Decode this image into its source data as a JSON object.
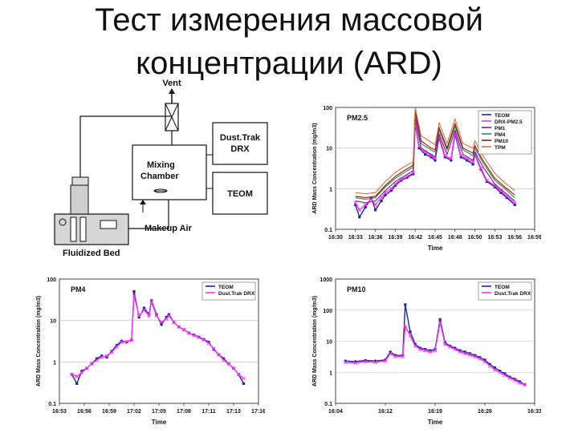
{
  "slide": {
    "title_line1": "Тест измерения массовой",
    "title_line2": "концентрации (ARD)"
  },
  "diagram": {
    "vent": "Vent",
    "dusttrak_line1": "Dust.Trak",
    "dusttrak_line2": "DRX",
    "mixing_line1": "Mixing",
    "mixing_line2": "Chamber",
    "teom": "TEOM",
    "makeup_air": "Makeup Air",
    "fluidized_bed": "Fluidized Bed"
  },
  "colors": {
    "teom": "#1a2a8c",
    "drx": "#ff33ff",
    "pm1": "#7a1fa2",
    "pm4": "#2e8b3a",
    "pm10": "#8b1a1a",
    "tpm": "#e0703a"
  },
  "chart_data": [
    {
      "id": "pm25",
      "type": "line",
      "title": "PM2.5",
      "xlabel": "Time",
      "ylabel": "ARD Mass Concentration (mg/m3)",
      "yscale": "log",
      "ylim": [
        0.1,
        100
      ],
      "yticks": [
        "0.1",
        "1",
        "10",
        "100"
      ],
      "xticks": [
        "16:30",
        "16:33",
        "16:36",
        "16:39",
        "16:42",
        "16:45",
        "16:48",
        "16:50",
        "16:53",
        "16:56",
        "16:59"
      ],
      "xlim": [
        0,
        10
      ],
      "legend_position": "top-right",
      "series": [
        {
          "name": "TEOM",
          "color": "#1a2a8c",
          "marker": "square",
          "x": [
            1.0,
            1.2,
            1.5,
            1.8,
            2.0,
            2.3,
            2.5,
            2.8,
            3.0,
            3.3,
            3.6,
            3.9,
            4.0,
            4.2,
            4.5,
            4.8,
            5.0,
            5.2,
            5.5,
            5.8,
            6.0,
            6.3,
            6.6,
            6.9,
            7.0,
            7.3,
            7.6,
            8.0,
            8.3,
            8.6,
            9.0
          ],
          "y": [
            0.4,
            0.2,
            0.35,
            0.6,
            0.3,
            0.5,
            0.7,
            0.9,
            1.2,
            1.6,
            1.9,
            2.3,
            40,
            10,
            7,
            6,
            5,
            18,
            6,
            5,
            22,
            6,
            5,
            4,
            7,
            3,
            1.5,
            1.1,
            0.8,
            0.6,
            0.4
          ]
        },
        {
          "name": "DRX-PM2.5",
          "color": "#ff33ff",
          "marker": "x",
          "x": [
            1.0,
            1.2,
            1.5,
            1.8,
            2.0,
            2.3,
            2.5,
            2.8,
            3.0,
            3.3,
            3.6,
            3.9,
            4.0,
            4.2,
            4.5,
            4.8,
            5.0,
            5.2,
            5.5,
            5.8,
            6.0,
            6.3,
            6.6,
            6.9,
            7.0,
            7.3,
            7.6,
            8.0,
            8.3,
            8.6,
            9.0
          ],
          "y": [
            0.45,
            0.3,
            0.4,
            0.55,
            0.4,
            0.6,
            0.8,
            1.0,
            1.3,
            1.7,
            2.0,
            2.5,
            45,
            11,
            8,
            6.5,
            5.5,
            20,
            6.5,
            5.5,
            25,
            6.5,
            5.5,
            4.5,
            7.5,
            3.2,
            1.6,
            1.2,
            0.9,
            0.65,
            0.45
          ]
        },
        {
          "name": "PM1",
          "color": "#7a1fa2",
          "marker": "none",
          "x": [
            1.0,
            1.5,
            2.0,
            2.5,
            3.0,
            3.5,
            3.9,
            4.0,
            4.3,
            4.8,
            5.0,
            5.2,
            5.6,
            6.0,
            6.4,
            6.9,
            7.0,
            7.4,
            8.0,
            8.5,
            9.0
          ],
          "y": [
            0.5,
            0.45,
            0.5,
            0.9,
            1.5,
            2.1,
            2.8,
            55,
            10,
            7,
            6,
            22,
            7,
            27,
            7,
            5,
            8,
            3.5,
            1.3,
            0.8,
            0.5
          ]
        },
        {
          "name": "PM4",
          "color": "#2e8b3a",
          "marker": "none",
          "x": [
            1.0,
            1.5,
            2.0,
            2.5,
            3.0,
            3.5,
            3.9,
            4.0,
            4.3,
            4.8,
            5.0,
            5.2,
            5.6,
            6.0,
            6.4,
            6.9,
            7.0,
            7.4,
            8.0,
            8.5,
            9.0
          ],
          "y": [
            0.6,
            0.55,
            0.6,
            1.1,
            1.8,
            2.6,
            3.4,
            70,
            13,
            9,
            8,
            28,
            9,
            34,
            9,
            6.5,
            10,
            4.4,
            1.6,
            1.0,
            0.6
          ]
        },
        {
          "name": "PM10",
          "color": "#8b1a1a",
          "marker": "none",
          "x": [
            1.0,
            1.5,
            2.0,
            2.5,
            3.0,
            3.5,
            3.9,
            4.0,
            4.3,
            4.8,
            5.0,
            5.2,
            5.6,
            6.0,
            6.4,
            6.9,
            7.0,
            7.4,
            8.0,
            8.5,
            9.0
          ],
          "y": [
            0.65,
            0.6,
            0.65,
            1.2,
            2.0,
            2.9,
            3.8,
            85,
            15,
            10,
            9,
            32,
            10,
            40,
            10,
            7.5,
            11.5,
            5,
            1.8,
            1.1,
            0.7
          ]
        },
        {
          "name": "TPM",
          "color": "#e0703a",
          "marker": "none",
          "x": [
            1.0,
            1.5,
            2.0,
            2.5,
            3.0,
            3.5,
            3.9,
            4.0,
            4.3,
            4.8,
            5.0,
            5.2,
            5.6,
            6.0,
            6.4,
            6.9,
            7.0,
            7.4,
            8.0,
            8.5,
            9.0
          ],
          "y": [
            0.8,
            0.75,
            0.8,
            1.5,
            2.5,
            3.6,
            4.6,
            100,
            20,
            14,
            12,
            42,
            13,
            52,
            13,
            10,
            15,
            6.5,
            2.4,
            1.4,
            0.9
          ]
        }
      ]
    },
    {
      "id": "pm4",
      "type": "line",
      "title": "PM4",
      "xlabel": "Time",
      "ylabel": "ARD Mass Concentration (mg/m3)",
      "yscale": "log",
      "ylim": [
        0.1,
        100
      ],
      "yticks": [
        "0.1",
        "1",
        "10",
        "100"
      ],
      "xticks": [
        "16:53",
        "16:56",
        "16:59",
        "17:02",
        "17:05",
        "17:08",
        "17:11",
        "17:13",
        "17:16"
      ],
      "xlim": [
        0,
        8
      ],
      "legend_position": "top-right",
      "series": [
        {
          "name": "TEOM",
          "color": "#1a2a8c",
          "marker": "square",
          "x": [
            0.5,
            0.7,
            0.9,
            1.1,
            1.3,
            1.5,
            1.7,
            1.9,
            2.1,
            2.3,
            2.5,
            2.7,
            2.9,
            3.0,
            3.2,
            3.4,
            3.6,
            3.7,
            3.9,
            4.1,
            4.3,
            4.4,
            4.6,
            4.8,
            5.0,
            5.2,
            5.4,
            5.6,
            5.8,
            6.0,
            6.2,
            6.4,
            6.6,
            6.8,
            7.0,
            7.2,
            7.4
          ],
          "y": [
            0.5,
            0.3,
            0.6,
            0.7,
            0.9,
            1.2,
            1.4,
            1.3,
            1.8,
            2.5,
            3.2,
            3.0,
            3.4,
            50,
            12,
            20,
            14,
            30,
            14,
            8,
            12,
            14,
            9,
            7,
            6,
            5,
            4.5,
            4,
            3.5,
            3,
            2,
            1.5,
            1.2,
            0.9,
            0.7,
            0.5,
            0.3
          ]
        },
        {
          "name": "Dust.Trak DRX",
          "color": "#ff33ff",
          "marker": "x",
          "x": [
            0.5,
            0.7,
            0.9,
            1.1,
            1.3,
            1.5,
            1.7,
            1.9,
            2.1,
            2.3,
            2.5,
            2.7,
            2.9,
            3.0,
            3.2,
            3.4,
            3.6,
            3.7,
            3.9,
            4.1,
            4.3,
            4.4,
            4.6,
            4.8,
            5.0,
            5.2,
            5.4,
            5.6,
            5.8,
            6.0,
            6.2,
            6.4,
            6.6,
            6.8,
            7.0,
            7.2,
            7.4
          ],
          "y": [
            0.5,
            0.45,
            0.55,
            0.7,
            0.9,
            1.1,
            1.3,
            1.4,
            1.7,
            2.3,
            3.0,
            3.1,
            3.3,
            40,
            13,
            18,
            13,
            28,
            13,
            9,
            11,
            13,
            9,
            7,
            6,
            5,
            4.4,
            3.9,
            3.4,
            2.8,
            2.1,
            1.5,
            1.1,
            0.9,
            0.7,
            0.5,
            0.4
          ]
        }
      ]
    },
    {
      "id": "pm10",
      "type": "line",
      "title": "PM10",
      "xlabel": "Time",
      "ylabel": "ARD Mass Concentration (mg/m3)",
      "yscale": "log",
      "ylim": [
        0.1,
        1000
      ],
      "yticks": [
        "0.1",
        "1",
        "10",
        "100",
        "1000"
      ],
      "xticks": [
        "16:04",
        "16:12",
        "16:19",
        "16:26",
        "16:33"
      ],
      "xlim": [
        0,
        4
      ],
      "legend_position": "top-right",
      "series": [
        {
          "name": "TEOM",
          "color": "#1a2a8c",
          "marker": "square",
          "x": [
            0.2,
            0.4,
            0.6,
            0.8,
            1.0,
            1.1,
            1.2,
            1.35,
            1.4,
            1.5,
            1.6,
            1.7,
            1.8,
            1.9,
            2.0,
            2.1,
            2.2,
            2.3,
            2.4,
            2.5,
            2.6,
            2.7,
            2.8,
            2.9,
            3.0,
            3.1,
            3.2,
            3.3,
            3.4,
            3.5,
            3.6,
            3.7,
            3.8
          ],
          "y": [
            2.3,
            2.2,
            2.4,
            2.3,
            2.5,
            4.5,
            3.5,
            3.5,
            150,
            20,
            8,
            6,
            5.5,
            5,
            5.5,
            50,
            9,
            7,
            6,
            5,
            4.5,
            4,
            3.5,
            3,
            2.5,
            1.8,
            1.4,
            1.1,
            0.9,
            0.7,
            0.6,
            0.5,
            0.4
          ]
        },
        {
          "name": "Dust.Trak DRX",
          "color": "#ff33ff",
          "marker": "x",
          "x": [
            0.2,
            0.4,
            0.6,
            0.8,
            1.0,
            1.1,
            1.2,
            1.35,
            1.4,
            1.5,
            1.6,
            1.7,
            1.8,
            1.9,
            2.0,
            2.1,
            2.2,
            2.3,
            2.4,
            2.5,
            2.6,
            2.7,
            2.8,
            2.9,
            3.0,
            3.1,
            3.2,
            3.3,
            3.4,
            3.5,
            3.6,
            3.7,
            3.8
          ],
          "y": [
            2.1,
            2.0,
            2.2,
            2.1,
            2.3,
            4.0,
            3.2,
            3.2,
            30,
            15,
            7,
            5.5,
            5.0,
            4.5,
            5.0,
            40,
            8,
            6.5,
            5.5,
            4.5,
            4.0,
            3.6,
            3.2,
            2.7,
            2.2,
            1.6,
            1.2,
            1.0,
            0.8,
            0.65,
            0.55,
            0.45,
            0.4
          ]
        }
      ]
    }
  ]
}
